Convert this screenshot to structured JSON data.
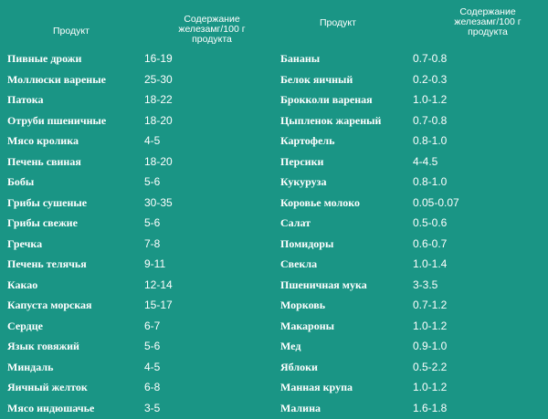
{
  "header": {
    "product_left": "Продукт",
    "iron_left": "Содержание железамг/100 г продукта",
    "product_right": "Продукт",
    "iron_right": "Содержание железамг/100 г продукта"
  },
  "left_rows": [
    {
      "name": "Пивные дрожи",
      "value": "16-19"
    },
    {
      "name": "Моллюски вареные",
      "value": "25-30"
    },
    {
      "name": "Патока",
      "value": "18-22"
    },
    {
      "name": "Отруби пшеничные",
      "value": "18-20"
    },
    {
      "name": "Мясо кролика",
      "value": "4-5"
    },
    {
      "name": "Печень свиная",
      "value": "18-20"
    },
    {
      "name": "Бобы",
      "value": "5-6"
    },
    {
      "name": "Грибы сушеные",
      "value": "30-35"
    },
    {
      "name": "Грибы свежие",
      "value": "5-6"
    },
    {
      "name": "Гречка",
      "value": "7-8"
    },
    {
      "name": "Печень телячья",
      "value": "9-11"
    },
    {
      "name": "Какао",
      "value": "12-14"
    },
    {
      "name": "Капуста морская",
      "value": "15-17"
    },
    {
      "name": "Сердце",
      "value": "6-7"
    },
    {
      "name": "Язык говяжий",
      "value": "5-6"
    },
    {
      "name": "Миндаль",
      "value": "4-5"
    },
    {
      "name": "Яичный желток",
      "value": "6-8"
    },
    {
      "name": "Мясо индюшачье",
      "value": "3-5"
    }
  ],
  "right_rows": [
    {
      "name": "Бананы",
      "value": "0.7-0.8"
    },
    {
      "name": "Белок яичный",
      "value": "0.2-0.3"
    },
    {
      "name": "Брокколи вареная",
      "value": "1.0-1.2"
    },
    {
      "name": "Цыпленок жареный",
      "value": "0.7-0.8"
    },
    {
      "name": "Картофель",
      "value": "0.8-1.0"
    },
    {
      "name": "Персики",
      "value": "4-4.5"
    },
    {
      "name": "Кукуруза",
      "value": "0.8-1.0"
    },
    {
      "name": "Коровье молоко",
      "value": "0.05-0.07"
    },
    {
      "name": "Салат",
      "value": "0.5-0.6"
    },
    {
      "name": "Помидоры",
      "value": "0.6-0.7"
    },
    {
      "name": "Свекла",
      "value": "1.0-1.4"
    },
    {
      "name": "Пшеничная мука",
      "value": "3-3.5"
    },
    {
      "name": "Морковь",
      "value": "0.7-1.2"
    },
    {
      "name": "Макароны",
      "value": "1.0-1.2"
    },
    {
      "name": "Мед",
      "value": "0.9-1.0"
    },
    {
      "name": "Яблоки",
      "value": "0.5-2.2"
    },
    {
      "name": "Манная крупа",
      "value": "1.0-1.2"
    },
    {
      "name": "Малина",
      "value": "1.6-1.8"
    }
  ]
}
